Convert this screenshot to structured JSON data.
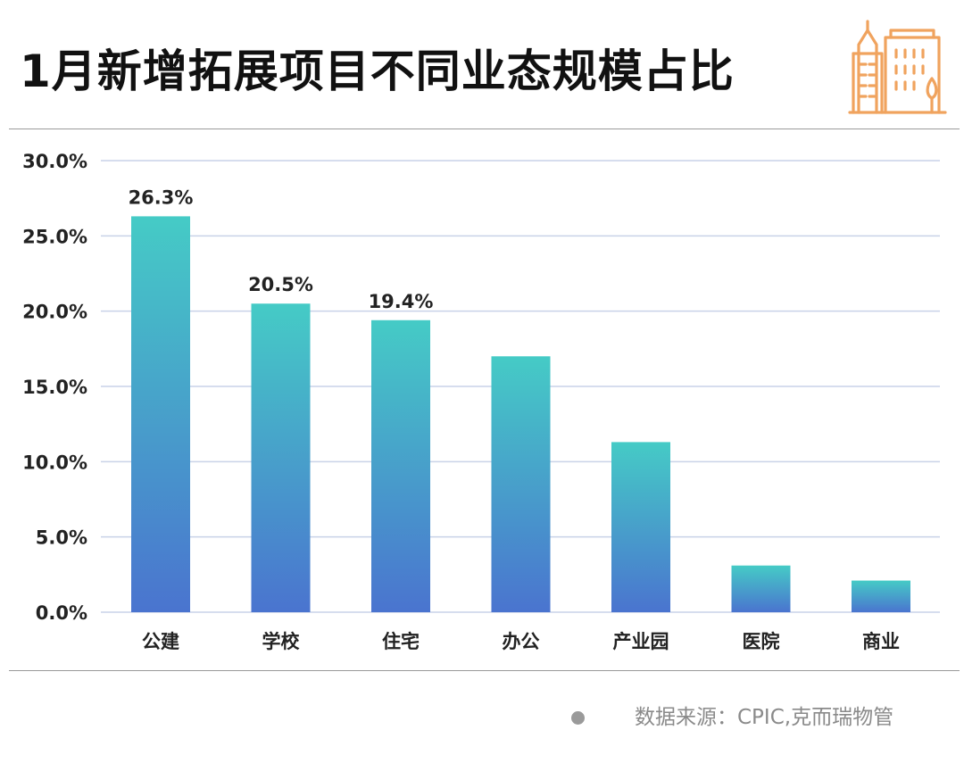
{
  "title": "1月新增拓展项目不同业态规模占比",
  "logo": {
    "icon": "buildings-icon",
    "color": "#F0A35E"
  },
  "source": "数据来源：CPIC,克而瑞物管",
  "colors": {
    "bar_top": "#45CBC6",
    "bar_bottom": "#4A74CF",
    "grid": "#C9D2E8",
    "axis_text": "#222222"
  },
  "chart_data": {
    "type": "bar",
    "categories": [
      "公建",
      "学校",
      "住宅",
      "办公",
      "产业园",
      "医院",
      "商业"
    ],
    "values": [
      26.3,
      20.5,
      19.4,
      17.0,
      11.3,
      3.1,
      2.1
    ],
    "data_labels": [
      "26.3%",
      "20.5%",
      "19.4%",
      "",
      "",
      "",
      ""
    ],
    "yticks": [
      "0.0%",
      "5.0%",
      "10.0%",
      "15.0%",
      "20.0%",
      "25.0%",
      "30.0%"
    ],
    "ylim": [
      0,
      30
    ],
    "ytick_step": 5,
    "grid": true,
    "title": "",
    "xlabel": "",
    "ylabel": ""
  }
}
